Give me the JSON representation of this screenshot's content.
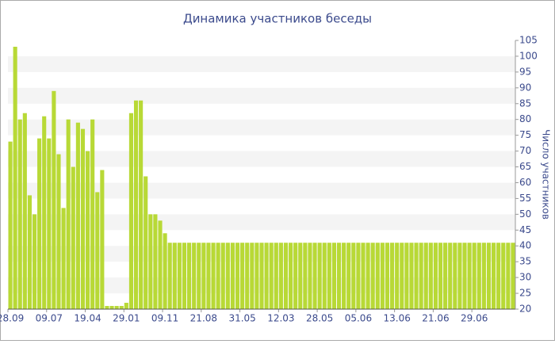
{
  "chart_data": {
    "type": "bar",
    "title": "Динамика участников беседы",
    "y_label": "Число участников",
    "categories": [
      "28.09",
      null,
      null,
      null,
      null,
      null,
      null,
      null,
      "09.07",
      null,
      null,
      null,
      null,
      null,
      null,
      null,
      "19.04",
      null,
      null,
      null,
      null,
      null,
      null,
      null,
      "29.01",
      null,
      null,
      null,
      null,
      null,
      null,
      null,
      "09.11",
      null,
      null,
      null,
      null,
      null,
      null,
      null,
      "21.08",
      null,
      null,
      null,
      null,
      null,
      null,
      null,
      "31.05",
      null,
      null,
      null,
      null,
      null,
      null,
      null,
      "12.03",
      null,
      null,
      null,
      null,
      null,
      null,
      null,
      "28.05",
      null,
      null,
      null,
      null,
      null,
      null,
      null,
      "05.06",
      null,
      null,
      null,
      null,
      null,
      null,
      null,
      "13.06",
      null,
      null,
      null,
      null,
      null,
      null,
      null,
      "21.06",
      null,
      null,
      null,
      null,
      null,
      null,
      null,
      "29.06",
      null,
      null,
      null,
      null,
      null,
      null,
      null,
      null
    ],
    "values": [
      73,
      103,
      80,
      82,
      56,
      50,
      74,
      81,
      74,
      89,
      69,
      52,
      80,
      65,
      79,
      77,
      70,
      80,
      57,
      64,
      21,
      21,
      21,
      21,
      22,
      82,
      86,
      86,
      62,
      50,
      50,
      48,
      44,
      41,
      41,
      41,
      41,
      41,
      41,
      41,
      41,
      41,
      41,
      41,
      41,
      41,
      41,
      41,
      41,
      41,
      41,
      41,
      41,
      41,
      41,
      41,
      41,
      41,
      41,
      41,
      41,
      41,
      41,
      41,
      41,
      41,
      41,
      41,
      41,
      41,
      41,
      41,
      41,
      41,
      41,
      41,
      41,
      41,
      41,
      41,
      41,
      41,
      41,
      41,
      41,
      41,
      41,
      41,
      41,
      41,
      41,
      41,
      41,
      41,
      41,
      41,
      41,
      41,
      41,
      41,
      41,
      41,
      41,
      41,
      41
    ],
    "color": "#b8d936",
    "ylim": [
      20,
      105
    ],
    "yticks": [
      20,
      25,
      30,
      35,
      40,
      45,
      50,
      55,
      60,
      65,
      70,
      75,
      80,
      85,
      90,
      95,
      100,
      105
    ],
    "y_axis_side": "right",
    "grid": true
  }
}
